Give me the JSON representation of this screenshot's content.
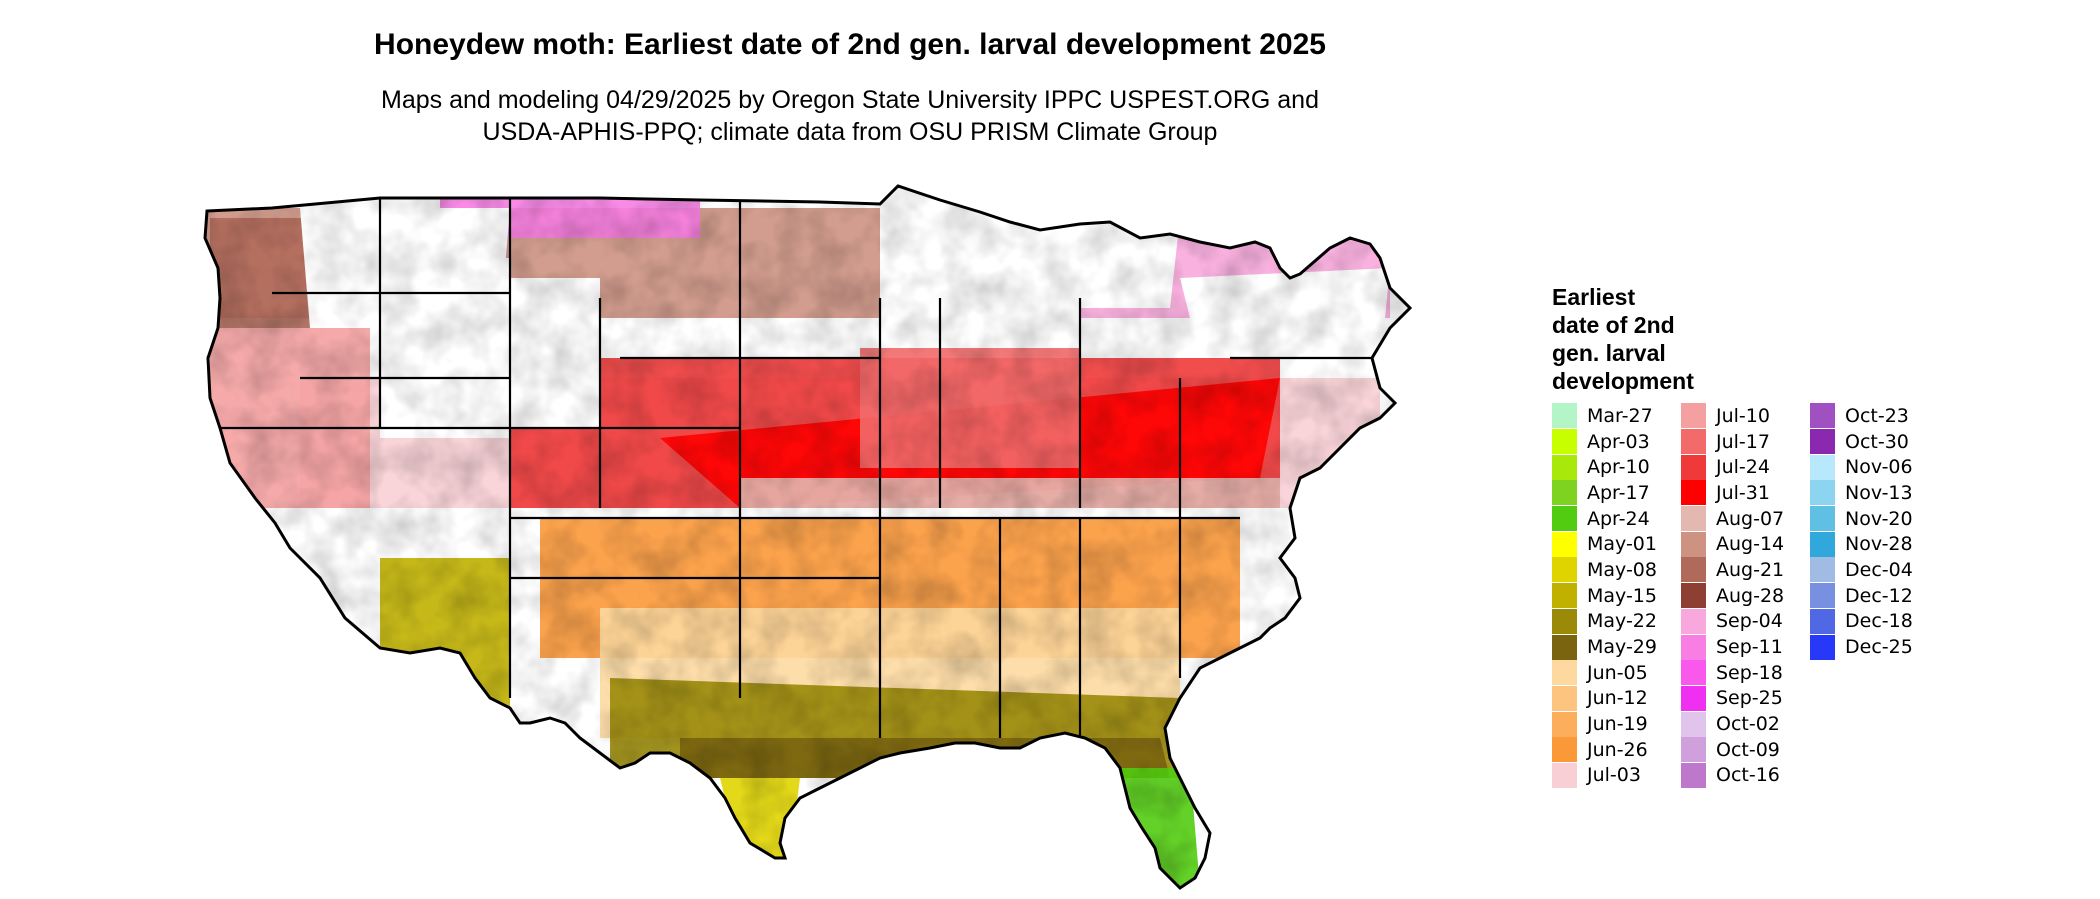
{
  "title": "Honeydew moth: Earliest date of 2nd gen. larval development 2025",
  "subtitle_lines": [
    "Maps and modeling 04/29/2025 by Oregon State University IPPC USPEST.ORG and",
    "USDA-APHIS-PPQ; climate data from OSU PRISM Climate Group"
  ],
  "legend": {
    "title_lines": [
      "Earliest",
      "date of 2nd",
      "gen. larval",
      "development"
    ],
    "columns": [
      [
        {
          "label": "Mar-27",
          "color": "#b4f5c8"
        },
        {
          "label": "Apr-03",
          "color": "#c8ff00"
        },
        {
          "label": "Apr-10",
          "color": "#a8e80a"
        },
        {
          "label": "Apr-17",
          "color": "#7ed321"
        },
        {
          "label": "Apr-24",
          "color": "#52cc10"
        },
        {
          "label": "May-01",
          "color": "#ffff00"
        },
        {
          "label": "May-08",
          "color": "#e0d400"
        },
        {
          "label": "May-15",
          "color": "#c0b000"
        },
        {
          "label": "May-22",
          "color": "#9a8a08"
        },
        {
          "label": "May-29",
          "color": "#7a6410"
        },
        {
          "label": "Jun-05",
          "color": "#fdd9a0"
        },
        {
          "label": "Jun-12",
          "color": "#fdc480"
        },
        {
          "label": "Jun-19",
          "color": "#fcae5c"
        },
        {
          "label": "Jun-26",
          "color": "#fb9838"
        },
        {
          "label": "Jul-03",
          "color": "#f8cfd4"
        }
      ],
      [
        {
          "label": "Jul-10",
          "color": "#f4a0a0"
        },
        {
          "label": "Jul-17",
          "color": "#f26a6a"
        },
        {
          "label": "Jul-24",
          "color": "#f03a3a"
        },
        {
          "label": "Jul-31",
          "color": "#ff0000"
        },
        {
          "label": "Aug-07",
          "color": "#e3b8b0"
        },
        {
          "label": "Aug-14",
          "color": "#cd9282"
        },
        {
          "label": "Aug-21",
          "color": "#b06a5a"
        },
        {
          "label": "Aug-28",
          "color": "#8e3f34"
        },
        {
          "label": "Sep-04",
          "color": "#f8a8dc"
        },
        {
          "label": "Sep-11",
          "color": "#f87ee4"
        },
        {
          "label": "Sep-18",
          "color": "#f858ec"
        },
        {
          "label": "Sep-25",
          "color": "#f030f0"
        },
        {
          "label": "Oct-02",
          "color": "#e0c4ec"
        },
        {
          "label": "Oct-09",
          "color": "#cfa0dc"
        },
        {
          "label": "Oct-16",
          "color": "#bd78cc"
        }
      ],
      [
        {
          "label": "Oct-23",
          "color": "#a050c0"
        },
        {
          "label": "Oct-30",
          "color": "#8a28b0"
        },
        {
          "label": "Nov-06",
          "color": "#b8e8fc"
        },
        {
          "label": "Nov-13",
          "color": "#8cd4f0"
        },
        {
          "label": "Nov-20",
          "color": "#60c0e4"
        },
        {
          "label": "Nov-28",
          "color": "#30a8dc"
        },
        {
          "label": "Dec-04",
          "color": "#a0bce4"
        },
        {
          "label": "Dec-12",
          "color": "#7890e0"
        },
        {
          "label": "Dec-18",
          "color": "#5068e4"
        },
        {
          "label": "Dec-25",
          "color": "#2838f8"
        }
      ]
    ]
  },
  "map": {
    "outline_color": "#000000",
    "background_color": "#ffffff"
  }
}
